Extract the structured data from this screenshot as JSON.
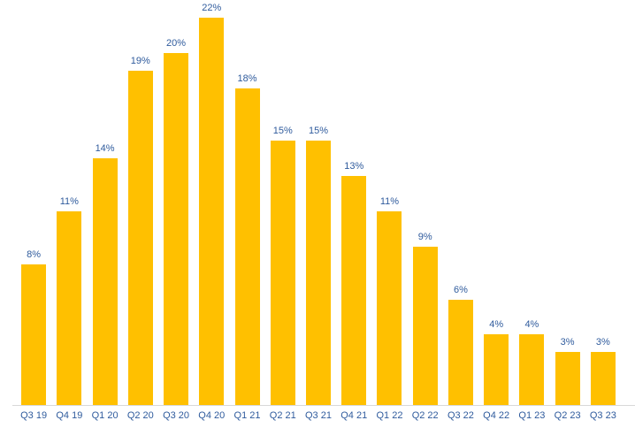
{
  "chart_data": {
    "type": "bar",
    "title": "",
    "xlabel": "",
    "ylabel": "",
    "categories": [
      "Q3 19",
      "Q4 19",
      "Q1 20",
      "Q2 20",
      "Q3 20",
      "Q4 20",
      "Q1 21",
      "Q2 21",
      "Q3 21",
      "Q4 21",
      "Q1 22",
      "Q2 22",
      "Q3 22",
      "Q4 22",
      "Q1 23",
      "Q2 23",
      "Q3 23"
    ],
    "values": [
      8,
      11,
      14,
      19,
      20,
      22,
      18,
      15,
      15,
      13,
      11,
      9,
      6,
      4,
      4,
      3,
      3
    ],
    "data_labels": [
      "8%",
      "11%",
      "14%",
      "19%",
      "20%",
      "22%",
      "18%",
      "15%",
      "15%",
      "13%",
      "11%",
      "9%",
      "6%",
      "4%",
      "4%",
      "3%",
      "3%"
    ],
    "ylim": [
      0,
      22
    ],
    "grid": false,
    "legend": "none",
    "y_axis_visible": false,
    "colors": {
      "bar": "#FFC000",
      "data_label": "#2F5B9D",
      "axis_tick_label": "#2F5B9D",
      "axis_line": "#D9D9D9",
      "background": "#FFFFFF"
    }
  }
}
